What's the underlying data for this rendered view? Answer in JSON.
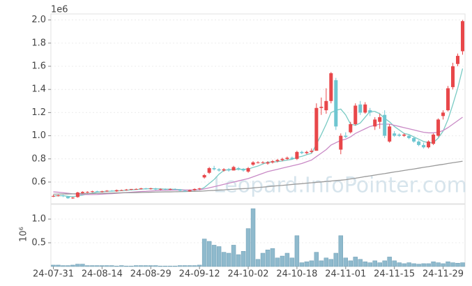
{
  "chart_data": {
    "type": "candlestick",
    "offset_label": "1e6",
    "watermark": "Leopard.InfoPointer.com",
    "categories": [
      "24-07-31",
      null,
      null,
      null,
      null,
      null,
      null,
      null,
      null,
      null,
      "24-08-14",
      null,
      null,
      null,
      null,
      null,
      null,
      null,
      null,
      null,
      "24-08-29",
      null,
      null,
      null,
      null,
      null,
      null,
      null,
      null,
      null,
      "24-09-12",
      null,
      null,
      null,
      null,
      null,
      null,
      null,
      null,
      null,
      "24-10-02",
      null,
      null,
      null,
      null,
      null,
      null,
      null,
      null,
      null,
      "24-10-18",
      null,
      null,
      null,
      null,
      null,
      null,
      null,
      null,
      null,
      "24-11-01",
      null,
      null,
      null,
      null,
      null,
      null,
      null,
      null,
      null,
      "24-11-15",
      null,
      null,
      null,
      null,
      null,
      null,
      null,
      null,
      null,
      "24-11-29",
      null,
      null,
      null,
      null
    ],
    "open": [
      0.48,
      0.48,
      0.485,
      0.475,
      0.46,
      0.47,
      0.505,
      0.51,
      0.515,
      0.52,
      0.515,
      0.52,
      0.525,
      0.52,
      0.53,
      0.53,
      0.535,
      0.54,
      0.54,
      0.545,
      0.54,
      0.545,
      0.535,
      0.54,
      0.535,
      0.54,
      0.535,
      0.525,
      0.52,
      0.53,
      0.54,
      0.64,
      0.68,
      0.72,
      0.71,
      0.7,
      0.71,
      0.7,
      0.72,
      0.71,
      0.69,
      0.75,
      0.77,
      0.77,
      0.76,
      0.77,
      0.78,
      0.79,
      0.8,
      0.81,
      0.8,
      0.86,
      0.85,
      0.86,
      0.87,
      1.24,
      1.22,
      1.3,
      1.48,
      0.88,
      1.0,
      1.03,
      1.1,
      1.27,
      1.2,
      1.22,
      1.08,
      1.12,
      1.18,
      0.95,
      1.02,
      1.01,
      1.0,
      1.0,
      0.98,
      0.95,
      0.92,
      0.9,
      0.93,
      1.0,
      1.17,
      1.22,
      1.42,
      1.62,
      1.73
    ],
    "high": [
      0.49,
      0.49,
      0.49,
      0.48,
      0.47,
      0.515,
      0.52,
      0.52,
      0.525,
      0.525,
      0.525,
      0.53,
      0.53,
      0.535,
      0.535,
      0.54,
      0.54,
      0.545,
      0.55,
      0.55,
      0.55,
      0.55,
      0.545,
      0.545,
      0.545,
      0.545,
      0.54,
      0.53,
      0.535,
      0.545,
      0.55,
      0.67,
      0.73,
      0.74,
      0.72,
      0.72,
      0.72,
      0.74,
      0.73,
      0.72,
      0.73,
      0.78,
      0.78,
      0.78,
      0.78,
      0.79,
      0.8,
      0.81,
      0.82,
      0.82,
      0.87,
      0.87,
      0.87,
      0.89,
      1.28,
      1.33,
      1.41,
      1.55,
      1.5,
      1.02,
      1.03,
      1.12,
      1.28,
      1.3,
      1.29,
      1.24,
      1.16,
      1.19,
      1.22,
      1.1,
      1.04,
      1.02,
      1.02,
      1.01,
      0.99,
      0.96,
      0.94,
      0.96,
      1.02,
      1.15,
      1.22,
      1.43,
      1.63,
      1.71,
      2.0
    ],
    "low": [
      0.47,
      0.475,
      0.47,
      0.455,
      0.455,
      0.465,
      0.5,
      0.505,
      0.51,
      0.51,
      0.51,
      0.515,
      0.52,
      0.515,
      0.525,
      0.525,
      0.53,
      0.535,
      0.535,
      0.535,
      0.535,
      0.53,
      0.53,
      0.53,
      0.53,
      0.53,
      0.52,
      0.515,
      0.515,
      0.525,
      0.53,
      0.63,
      0.67,
      0.7,
      0.69,
      0.69,
      0.69,
      0.7,
      0.7,
      0.69,
      0.68,
      0.74,
      0.76,
      0.76,
      0.75,
      0.76,
      0.77,
      0.78,
      0.79,
      0.8,
      0.79,
      0.84,
      0.84,
      0.85,
      0.87,
      1.18,
      1.19,
      1.28,
      1.05,
      0.84,
      0.98,
      1.02,
      1.09,
      1.18,
      1.19,
      1.17,
      1.05,
      1.06,
      0.98,
      0.94,
      0.99,
      0.99,
      0.99,
      0.97,
      0.94,
      0.91,
      0.89,
      0.89,
      0.92,
      0.99,
      1.14,
      1.21,
      1.4,
      1.6,
      1.7
    ],
    "close": [
      0.48,
      0.485,
      0.48,
      0.46,
      0.465,
      0.51,
      0.515,
      0.515,
      0.52,
      0.515,
      0.52,
      0.525,
      0.52,
      0.53,
      0.53,
      0.535,
      0.54,
      0.54,
      0.545,
      0.54,
      0.545,
      0.535,
      0.54,
      0.535,
      0.54,
      0.535,
      0.525,
      0.52,
      0.53,
      0.54,
      0.545,
      0.66,
      0.72,
      0.71,
      0.7,
      0.71,
      0.7,
      0.73,
      0.71,
      0.7,
      0.72,
      0.77,
      0.77,
      0.77,
      0.77,
      0.78,
      0.79,
      0.8,
      0.81,
      0.8,
      0.86,
      0.85,
      0.86,
      0.87,
      1.24,
      1.25,
      1.3,
      1.54,
      1.08,
      1.0,
      0.99,
      1.1,
      1.26,
      1.2,
      1.27,
      1.2,
      1.14,
      1.16,
      1.0,
      1.08,
      1.0,
      1.0,
      1.01,
      0.98,
      0.95,
      0.92,
      0.9,
      0.95,
      1.01,
      1.14,
      1.2,
      1.41,
      1.6,
      1.69,
      1.99
    ],
    "up_color": "#e8474a",
    "down_color": "#6ec6d1",
    "ylim": [
      0.413,
      2.052
    ],
    "yticks": [
      0.6,
      0.8,
      {
        "value": 1,
        "label": "1.0"
      },
      1.2,
      1.4,
      1.6,
      1.8,
      {
        "value": 2,
        "label": "2.0"
      }
    ],
    "grid": true,
    "ma_series": [
      {
        "color": "#79cbc4",
        "values": [
          0.48,
          0.482,
          0.482,
          0.477,
          0.474,
          0.48,
          0.487,
          0.497,
          0.505,
          0.514,
          0.517,
          0.52,
          0.521,
          0.524,
          0.525,
          0.529,
          0.532,
          0.535,
          0.539,
          0.541,
          0.543,
          0.541,
          0.541,
          0.539,
          0.539,
          0.537,
          0.535,
          0.531,
          0.53,
          0.53,
          0.532,
          0.553,
          0.588,
          0.622,
          0.668,
          0.7,
          0.708,
          0.71,
          0.71,
          0.71,
          0.712,
          0.726,
          0.738,
          0.756,
          0.772,
          0.772,
          0.776,
          0.782,
          0.79,
          0.796,
          0.812,
          0.822,
          0.836,
          0.848,
          0.926,
          1.01,
          1.1,
          1.2,
          1.22,
          1.23,
          1.18,
          1.1,
          1.09,
          1.11,
          1.16,
          1.21,
          1.21,
          1.19,
          1.15,
          1.12,
          1.08,
          1.05,
          1.02,
          1.01,
          0.99,
          0.97,
          0.95,
          0.94,
          0.94,
          0.98,
          1.04,
          1.14,
          1.27,
          1.41,
          1.58
        ]
      },
      {
        "color": "#c98ac6",
        "values": [
          0.515,
          0.512,
          0.508,
          0.503,
          0.498,
          0.495,
          0.493,
          0.492,
          0.492,
          0.493,
          0.495,
          0.498,
          0.5,
          0.503,
          0.506,
          0.509,
          0.512,
          0.515,
          0.518,
          0.52,
          0.523,
          0.525,
          0.527,
          0.529,
          0.53,
          0.531,
          0.531,
          0.531,
          0.531,
          0.532,
          0.533,
          0.54,
          0.55,
          0.56,
          0.57,
          0.58,
          0.59,
          0.6,
          0.61,
          0.62,
          0.63,
          0.645,
          0.66,
          0.675,
          0.69,
          0.7,
          0.71,
          0.72,
          0.73,
          0.74,
          0.75,
          0.76,
          0.775,
          0.79,
          0.82,
          0.85,
          0.88,
          0.92,
          0.94,
          0.96,
          0.97,
          0.99,
          1.02,
          1.04,
          1.06,
          1.08,
          1.09,
          1.1,
          1.1,
          1.1,
          1.09,
          1.08,
          1.07,
          1.06,
          1.05,
          1.04,
          1.03,
          1.025,
          1.025,
          1.03,
          1.045,
          1.07,
          1.1,
          1.13,
          1.16
        ]
      },
      {
        "color": "#999999",
        "values": [
          0.495,
          0.496,
          0.497,
          0.497,
          0.498,
          0.499,
          0.5,
          0.5,
          0.501,
          0.502,
          0.503,
          0.504,
          0.505,
          0.506,
          0.507,
          0.508,
          0.508,
          0.509,
          0.51,
          0.511,
          0.512,
          0.513,
          0.514,
          0.515,
          0.515,
          0.516,
          0.517,
          0.518,
          0.519,
          0.519,
          0.52,
          0.523,
          0.526,
          0.528,
          0.531,
          0.533,
          0.536,
          0.538,
          0.541,
          0.543,
          0.545,
          0.549,
          0.553,
          0.556,
          0.56,
          0.564,
          0.568,
          0.571,
          0.575,
          0.579,
          0.583,
          0.586,
          0.59,
          0.594,
          0.598,
          0.601,
          0.605,
          0.609,
          0.613,
          0.616,
          0.62,
          0.627,
          0.633,
          0.64,
          0.647,
          0.653,
          0.66,
          0.667,
          0.673,
          0.68,
          0.687,
          0.693,
          0.7,
          0.707,
          0.713,
          0.72,
          0.727,
          0.733,
          0.74,
          0.747,
          0.753,
          0.76,
          0.767,
          0.773,
          0.78
        ]
      }
    ],
    "volume": {
      "ylabel": "10⁶",
      "color": "#8fbacd",
      "edge_color": "#6b9bb2",
      "ylim": [
        0,
        1.31
      ],
      "yticks": [
        0.5,
        {
          "value": 1,
          "label": "1.0"
        }
      ],
      "values": [
        0.03,
        0.03,
        0.02,
        0.02,
        0.03,
        0.05,
        0.05,
        0.02,
        0.02,
        0.02,
        0.02,
        0.02,
        0.02,
        0.01,
        0.02,
        0.01,
        0.01,
        0.02,
        0.02,
        0.02,
        0.02,
        0.02,
        0.01,
        0.01,
        0.01,
        0.01,
        0.02,
        0.02,
        0.02,
        0.02,
        0.03,
        0.58,
        0.53,
        0.45,
        0.42,
        0.3,
        0.28,
        0.45,
        0.25,
        0.32,
        0.8,
        1.22,
        0.15,
        0.28,
        0.35,
        0.38,
        0.18,
        0.22,
        0.28,
        0.18,
        0.65,
        0.08,
        0.1,
        0.12,
        0.3,
        0.12,
        0.18,
        0.15,
        0.28,
        0.65,
        0.18,
        0.12,
        0.2,
        0.15,
        0.1,
        0.08,
        0.12,
        0.08,
        0.12,
        0.2,
        0.12,
        0.08,
        0.06,
        0.08,
        0.06,
        0.05,
        0.06,
        0.06,
        0.1,
        0.08,
        0.06,
        0.1,
        0.08,
        0.07,
        0.08
      ]
    }
  }
}
